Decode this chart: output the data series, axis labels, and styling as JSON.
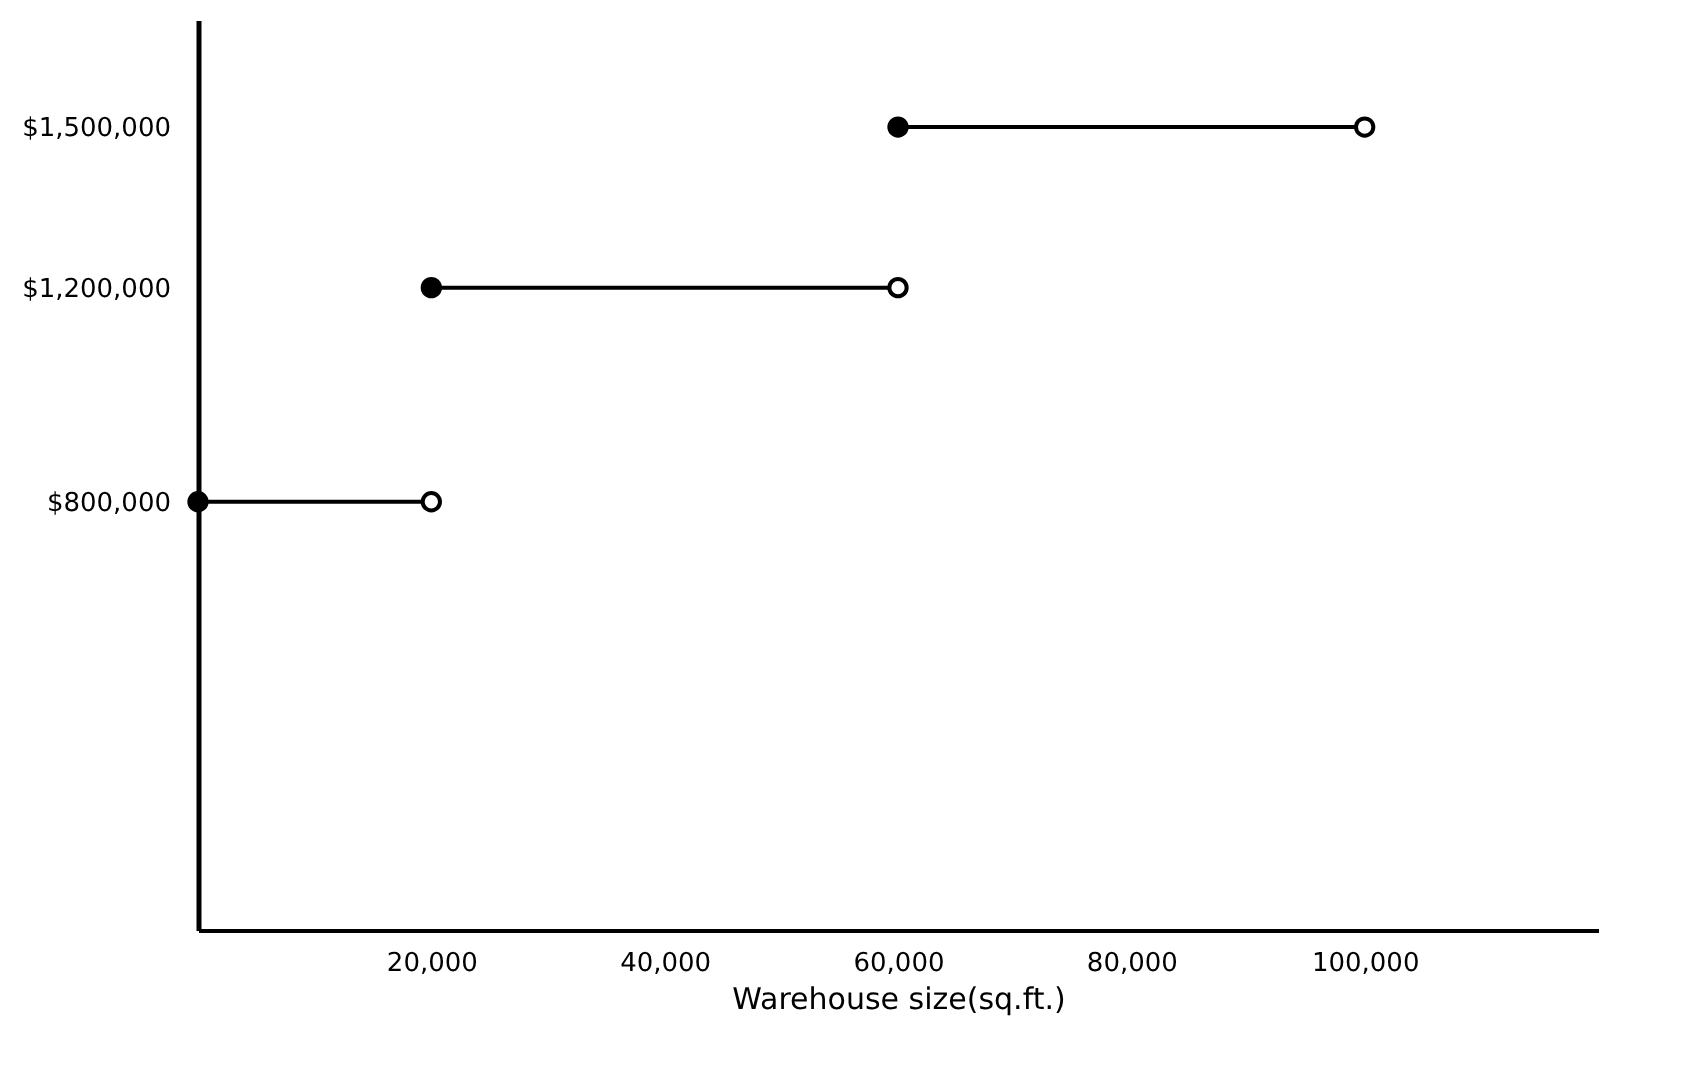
{
  "chart_data": {
    "type": "line",
    "xlabel": "Warehouse size(sq.ft.)",
    "series": [
      {
        "color": "#000000",
        "x": [
          0,
          20000
        ],
        "values": [
          800000,
          800000
        ]
      },
      {
        "color": "#000000",
        "x": [
          20000,
          60000
        ],
        "values": [
          1200000,
          1200000
        ]
      },
      {
        "color": "#000000",
        "x": [
          60000,
          100000
        ],
        "values": [
          1500000,
          1500000
        ]
      }
    ],
    "marker": "circle",
    "line_style": "solid",
    "grid": false,
    "xlim": [
      0,
      120000
    ],
    "xticks": [
      {
        "value": 20000,
        "label": "20,000"
      },
      {
        "value": 40000,
        "label": "40,000"
      },
      {
        "value": 60000,
        "label": "60,000"
      },
      {
        "value": 80000,
        "label": "80,000"
      },
      {
        "value": 100000,
        "label": "100,000"
      }
    ],
    "ylim": [
      0,
      1700000
    ],
    "yticks": [
      {
        "value": 800000,
        "label": "$800,000"
      },
      {
        "value": 1200000,
        "label": "$1,200,000"
      },
      {
        "value": 1500000,
        "label": "$1,500,000"
      }
    ]
  }
}
